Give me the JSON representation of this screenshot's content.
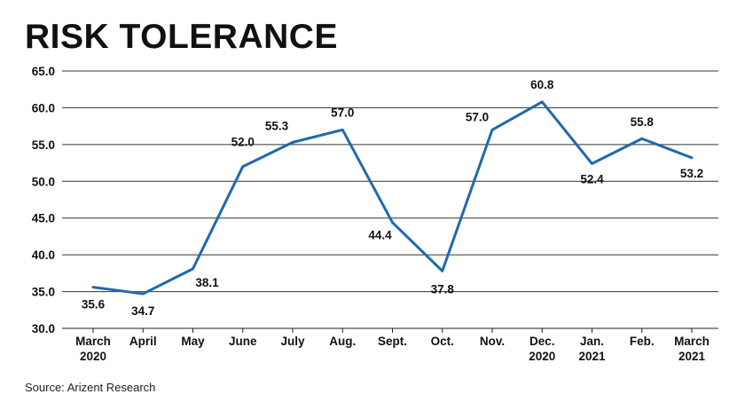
{
  "title": "RISK TOLERANCE",
  "source": "Source: Arizent Research",
  "chart_data": {
    "type": "line",
    "title": "RISK TOLERANCE",
    "xlabel": "",
    "ylabel": "",
    "ylim": [
      30.0,
      65.0
    ],
    "yticks": [
      "65.0",
      "60.0",
      "55.0",
      "50.0",
      "45.0",
      "40.0",
      "35.0",
      "30.0"
    ],
    "grid": true,
    "categories": [
      [
        "March",
        "2020"
      ],
      [
        "April"
      ],
      [
        "May"
      ],
      [
        "June"
      ],
      [
        "July"
      ],
      [
        "Aug."
      ],
      [
        "Sept."
      ],
      [
        "Oct."
      ],
      [
        "Nov."
      ],
      [
        "Dec.",
        "2020"
      ],
      [
        "Jan.",
        "2021"
      ],
      [
        "Feb."
      ],
      [
        "March",
        "2021"
      ]
    ],
    "series": [
      {
        "values": [
          35.6,
          34.7,
          38.1,
          52.0,
          55.3,
          57.0,
          44.4,
          37.8,
          57.0,
          60.8,
          52.4,
          55.8,
          53.2
        ],
        "labels": [
          "35.6",
          "34.7",
          "38.1",
          "52.0",
          "55.3",
          "57.0",
          "44.4",
          "37.8",
          "57.0",
          "60.8",
          "52.4",
          "55.8",
          "53.2"
        ],
        "color": "#1f6aad"
      }
    ]
  }
}
